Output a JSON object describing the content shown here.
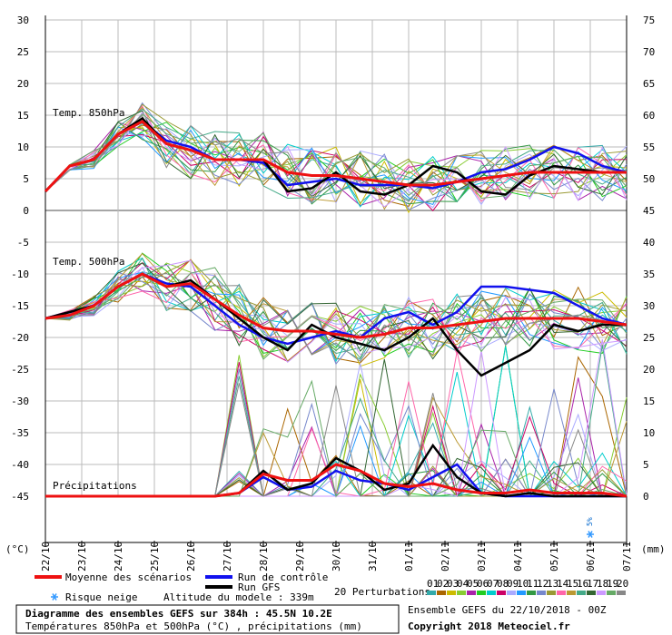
{
  "chart_data": {
    "type": "line",
    "title": "Diagramme des ensembles GEFS sur 384h : 45.5N 10.2E",
    "subtitle": "Températures 850hPa et 500hPa (°C) , précipitations (mm)",
    "left_axis": {
      "unit": "(°C)",
      "range": [
        -45,
        30
      ],
      "ticks": [
        30,
        25,
        20,
        15,
        10,
        5,
        0,
        -5,
        -10,
        -15,
        -20,
        -25,
        -30,
        -35,
        -40,
        -45
      ]
    },
    "right_axis": {
      "unit": "(mm)",
      "range": [
        0,
        75
      ],
      "ticks": [
        75,
        70,
        65,
        60,
        55,
        50,
        45,
        40,
        35,
        30,
        25,
        20,
        15,
        10,
        5,
        0
      ]
    },
    "x_dates": [
      "22/10",
      "23/10",
      "24/10",
      "25/10",
      "26/10",
      "27/10",
      "28/10",
      "29/10",
      "30/10",
      "31/10",
      "01/11",
      "02/11",
      "03/11",
      "04/11",
      "05/11",
      "06/11",
      "07/11"
    ],
    "panel_labels": {
      "t850": "Temp. 850hPa",
      "t500": "Temp. 500hPa",
      "precip": "Précipitations"
    },
    "snow_risk_label": "5%",
    "series": [
      {
        "name": "Moyenne des scénarios",
        "color": "#ee1111",
        "t850": [
          3,
          7,
          8,
          12,
          14,
          10.5,
          9.5,
          8,
          8,
          8,
          6,
          5.5,
          5.5,
          5,
          4.5,
          4,
          4,
          4.5,
          5,
          5.5,
          6,
          6,
          6,
          6,
          6
        ],
        "t500": [
          -17,
          -16.5,
          -15,
          -12,
          -10,
          -12,
          -11.5,
          -14,
          -16.5,
          -18.5,
          -19,
          -19,
          -19.5,
          -20,
          -19.5,
          -18.5,
          -18.5,
          -18,
          -17.5,
          -17,
          -17,
          -17,
          -17,
          -17.5,
          -18
        ],
        "precip": [
          0,
          0,
          0,
          0,
          0,
          0,
          0,
          0,
          0.5,
          3.5,
          2.5,
          2.5,
          5,
          4,
          2,
          1.5,
          2,
          1,
          0.5,
          0.5,
          1,
          0.5,
          0.5,
          0.5,
          0
        ]
      },
      {
        "name": "Run de contrôle",
        "color": "#1111ee",
        "t850": [
          3,
          7,
          8,
          12,
          14,
          11,
          10,
          8,
          8,
          7.5,
          4,
          4.5,
          5,
          4,
          4,
          4,
          3.5,
          4.5,
          6,
          6.5,
          8,
          10,
          9,
          7,
          6
        ],
        "t500": [
          -17,
          -16,
          -15,
          -12,
          -10,
          -11.5,
          -12,
          -15,
          -18,
          -20,
          -21,
          -20,
          -19,
          -20,
          -17,
          -16,
          -18,
          -16,
          -12,
          -12,
          -12.5,
          -13,
          -15,
          -17,
          -18
        ],
        "precip": [
          0,
          0,
          0,
          0,
          0,
          0,
          0,
          0,
          0.5,
          3,
          1,
          1.5,
          4,
          2.5,
          2,
          1,
          3,
          5,
          0.5,
          0,
          0,
          0,
          0,
          0,
          0
        ]
      },
      {
        "name": "Run GFS",
        "color": "#000000",
        "t850": [
          3,
          7,
          8,
          12,
          14.5,
          10.5,
          9.5,
          8,
          8,
          8,
          3,
          3.5,
          6,
          3,
          2.5,
          4,
          7,
          6,
          3,
          2.5,
          5.5,
          7,
          6.5,
          6,
          6
        ],
        "t500": [
          -17,
          -16,
          -15,
          -12,
          -10,
          -12,
          -11,
          -14,
          -17,
          -20,
          -22,
          -18,
          -20,
          -21,
          -22,
          -20,
          -17,
          -22,
          -26,
          -24,
          -22,
          -18,
          -19,
          -18,
          -18
        ],
        "precip": [
          0,
          0,
          0,
          0,
          0,
          0,
          0,
          0,
          0.5,
          4,
          1,
          2,
          6,
          4,
          1,
          2,
          8,
          3,
          0.5,
          0,
          0.5,
          0,
          0,
          0,
          0
        ]
      }
    ],
    "ensemble": {
      "label": "20 Perturbations",
      "members": [
        "01",
        "02",
        "03",
        "04",
        "05",
        "06",
        "07",
        "08",
        "09",
        "10",
        "11",
        "12",
        "13",
        "14",
        "15",
        "16",
        "17",
        "18",
        "19",
        "20"
      ],
      "colors": [
        "#33aaaa",
        "#aa6600",
        "#ccbb00",
        "#88cc33",
        "#aa22aa",
        "#22cc22",
        "#00cccc",
        "#cc0066",
        "#aaaaff",
        "#2299ff",
        "#339944",
        "#7788cc",
        "#999933",
        "#ff66aa",
        "#bb9933",
        "#44aa88",
        "#336633",
        "#cc99ff",
        "#66aa66",
        "#888888"
      ]
    }
  },
  "legend": {
    "mean": "Moyenne des scénarios",
    "control": "Run de contrôle",
    "gfs": "Run GFS",
    "snow": "Risque neige",
    "altitude": "Altitude du modele : 339m",
    "perturbations": "20 Perturbations"
  },
  "footer": {
    "title": "Diagramme des ensembles GEFS sur 384h : 45.5N 10.2E",
    "subtitle": "Températures 850hPa et 500hPa (°C) , précipitations (mm)",
    "run": "Ensemble GEFS du 22/10/2018 - 00Z",
    "copyright": "Copyright 2018 Meteociel.fr"
  }
}
